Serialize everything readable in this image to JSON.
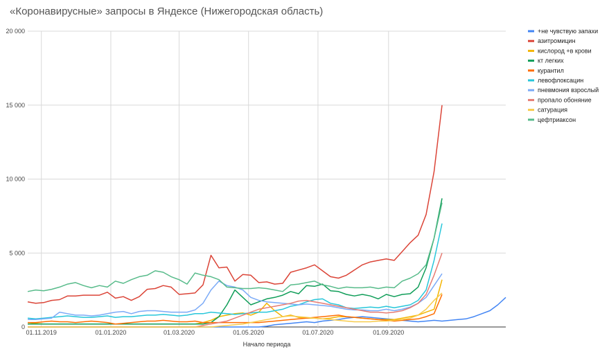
{
  "chart_data": {
    "type": "line",
    "title": "«Коронавирусные» запросы в Яндексе (Нижегородская область)",
    "xlabel": "Начало периода",
    "ylabel": "",
    "ylim": [
      0,
      20000
    ],
    "yticks": [
      0,
      5000,
      10000,
      15000,
      20000
    ],
    "ytick_labels": [
      "0",
      "5 000",
      "10 000",
      "15 000",
      "20 000"
    ],
    "x_start": "2019-10-20",
    "x_step_days": 7,
    "xticks": [
      "2019-11-01",
      "2020-01-01",
      "2020-03-01",
      "2020-05-01",
      "2020-07-01",
      "2020-09-01"
    ],
    "xtick_labels": [
      "01.11.2019",
      "01.01.2020",
      "01.03.2020",
      "01.05.2020",
      "01.07.2020",
      "01.09.2020"
    ],
    "grid": true,
    "legend_position": "right",
    "series": [
      {
        "name": "+не чувствую запахи",
        "color": "#4285f4",
        "values": [
          0,
          0,
          0,
          0,
          0,
          0,
          0,
          0,
          0,
          0,
          0,
          0,
          0,
          0,
          0,
          0,
          0,
          0,
          0,
          0,
          0,
          0,
          0,
          0,
          0,
          0,
          0,
          0,
          0,
          0,
          50,
          150,
          200,
          250,
          300,
          350,
          300,
          400,
          450,
          500,
          600,
          650,
          700,
          650,
          600,
          550,
          500,
          450,
          400,
          350,
          400,
          450,
          400,
          450,
          500,
          550,
          700,
          900,
          1100,
          1500,
          2000
        ]
      },
      {
        "name": "азитромицин",
        "color": "#db4437",
        "values": [
          1700,
          1600,
          1650,
          1800,
          1850,
          2100,
          2100,
          2150,
          2150,
          2150,
          2350,
          1950,
          2050,
          1800,
          2050,
          2550,
          2600,
          2800,
          2700,
          2200,
          2250,
          2300,
          2850,
          4850,
          4000,
          4050,
          3100,
          3550,
          3500,
          3000,
          3050,
          2900,
          2950,
          3700,
          3850,
          4000,
          4200,
          3800,
          3400,
          3300,
          3500,
          3850,
          4200,
          4400,
          4500,
          4600,
          4500,
          5100,
          5700,
          6200,
          7600,
          10500,
          15000
        ]
      },
      {
        "name": "кислород +в крови",
        "color": "#f4b400",
        "values": [
          300,
          250,
          200,
          200,
          200,
          200,
          200,
          200,
          200,
          200,
          200,
          200,
          200,
          200,
          200,
          200,
          200,
          200,
          200,
          200,
          200,
          200,
          300,
          450,
          700,
          800,
          900,
          950,
          800,
          1000,
          1600,
          1100,
          700,
          800,
          650,
          600,
          600,
          550,
          600,
          700,
          700,
          650,
          600,
          550,
          500,
          500,
          500,
          600,
          700,
          800,
          1000,
          1200,
          3200
        ]
      },
      {
        "name": "кт легких",
        "color": "#0f9d58",
        "values": [
          200,
          200,
          200,
          200,
          200,
          200,
          200,
          200,
          200,
          200,
          200,
          200,
          200,
          200,
          200,
          200,
          200,
          200,
          200,
          200,
          200,
          200,
          200,
          300,
          700,
          1500,
          2500,
          2000,
          1500,
          1700,
          1900,
          2000,
          2150,
          2400,
          2250,
          2800,
          2750,
          2900,
          2450,
          2400,
          2200,
          2100,
          2200,
          2100,
          1900,
          2200,
          2050,
          2200,
          2250,
          2700,
          4000,
          6000,
          8700
        ]
      },
      {
        "name": "курантил",
        "color": "#ff6d00",
        "values": [
          300,
          300,
          350,
          400,
          350,
          350,
          300,
          350,
          400,
          350,
          300,
          200,
          250,
          300,
          350,
          400,
          400,
          450,
          400,
          350,
          350,
          400,
          300,
          300,
          300,
          300,
          300,
          300,
          300,
          300,
          350,
          400,
          450,
          500,
          550,
          600,
          650,
          700,
          750,
          800,
          700,
          650,
          600,
          550,
          500,
          450,
          400,
          450,
          500,
          550,
          700,
          900,
          2200
        ]
      },
      {
        "name": "левофлоксацин",
        "color": "#26c6da",
        "values": [
          600,
          550,
          600,
          650,
          700,
          750,
          700,
          650,
          650,
          700,
          750,
          650,
          700,
          700,
          750,
          800,
          800,
          850,
          800,
          750,
          800,
          900,
          900,
          1000,
          950,
          900,
          850,
          900,
          950,
          1000,
          1000,
          1100,
          1200,
          1400,
          1500,
          1700,
          1850,
          1900,
          1600,
          1500,
          1300,
          1250,
          1300,
          1350,
          1300,
          1400,
          1300,
          1400,
          1500,
          1800,
          2500,
          4500,
          7000
        ]
      },
      {
        "name": "пневмония взрослый",
        "color": "#7baaf7",
        "values": [
          500,
          500,
          550,
          600,
          1000,
          900,
          800,
          800,
          750,
          800,
          900,
          1000,
          1050,
          900,
          1050,
          1100,
          1100,
          1050,
          1000,
          1000,
          1000,
          1150,
          1600,
          2500,
          3100,
          2800,
          2700,
          2500,
          2000,
          1800,
          1700,
          1650,
          1600,
          1550,
          1500,
          1550,
          1500,
          1450,
          1400,
          1300,
          1200,
          1150,
          1150,
          1100,
          1100,
          1200,
          1100,
          1200,
          1350,
          1600,
          2000,
          2800,
          3600
        ]
      },
      {
        "name": "пропало обоняние",
        "color": "#e67c73",
        "values": [
          0,
          0,
          0,
          0,
          0,
          0,
          0,
          0,
          0,
          0,
          0,
          0,
          0,
          0,
          0,
          0,
          0,
          0,
          0,
          0,
          0,
          0,
          100,
          200,
          300,
          400,
          600,
          800,
          1000,
          1200,
          1300,
          1400,
          1500,
          1600,
          1750,
          1800,
          1700,
          1600,
          1500,
          1400,
          1300,
          1200,
          1100,
          1000,
          1000,
          950,
          1000,
          1100,
          1300,
          1600,
          2200,
          3500,
          5000
        ]
      },
      {
        "name": "сатурация",
        "color": "#f7cb4d",
        "values": [
          0,
          0,
          0,
          0,
          0,
          0,
          0,
          0,
          0,
          0,
          0,
          0,
          0,
          0,
          0,
          0,
          0,
          0,
          0,
          0,
          0,
          0,
          0,
          0,
          50,
          100,
          150,
          200,
          300,
          400,
          500,
          600,
          700,
          750,
          700,
          650,
          600,
          550,
          500,
          450,
          400,
          350,
          350,
          350,
          400,
          400,
          450,
          500,
          600,
          800,
          1200,
          1800,
          2300
        ]
      },
      {
        "name": "цефтриаксон",
        "color": "#57bb8a",
        "values": [
          2400,
          2500,
          2450,
          2550,
          2700,
          2900,
          3000,
          2800,
          2650,
          2800,
          2700,
          3100,
          2950,
          3200,
          3400,
          3500,
          3800,
          3700,
          3400,
          3200,
          2900,
          3650,
          3500,
          3400,
          3200,
          2700,
          2650,
          2600,
          2600,
          2650,
          2600,
          2500,
          2400,
          2850,
          2900,
          3000,
          3100,
          2850,
          2750,
          2600,
          2700,
          2650,
          2650,
          2700,
          2600,
          2700,
          2650,
          3100,
          3300,
          3600,
          4200,
          6000,
          8400
        ]
      }
    ]
  }
}
